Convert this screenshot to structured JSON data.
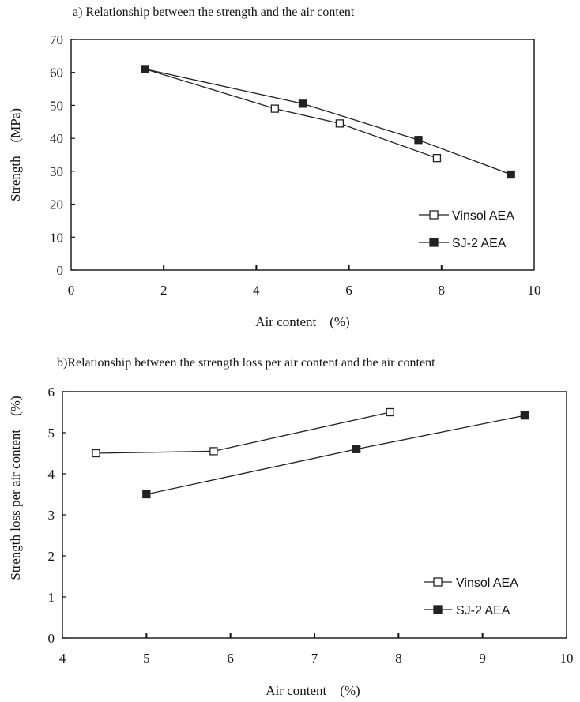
{
  "chart_data": [
    {
      "type": "line",
      "title": "a) Relationship between the strength and the air content",
      "xlabel": "Air content　(%)",
      "ylabel": "Strength　(MPa)",
      "xlim": [
        0,
        10
      ],
      "ylim": [
        0,
        70
      ],
      "xticks": [
        "0",
        "2",
        "4",
        "6",
        "8",
        "10"
      ],
      "yticks": [
        "0",
        "10",
        "20",
        "30",
        "40",
        "50",
        "60",
        "70"
      ],
      "grid": false,
      "legend_position": "lower-right",
      "series": [
        {
          "name": "Vinsol AEA",
          "marker": "open-square",
          "x": [
            1.6,
            4.4,
            5.8,
            7.9
          ],
          "y": [
            61,
            49,
            44.5,
            34
          ]
        },
        {
          "name": "SJ-2 AEA",
          "marker": "filled-square",
          "x": [
            1.6,
            5.0,
            7.5,
            9.5
          ],
          "y": [
            61,
            50.5,
            39.5,
            29
          ]
        }
      ]
    },
    {
      "type": "line",
      "title": "b)Relationship between the strength loss per air content and the air content",
      "xlabel": "Air content　(%)",
      "ylabel": "Strength loss per air content　(%)",
      "xlim": [
        4,
        10
      ],
      "ylim": [
        0,
        6
      ],
      "xticks": [
        "4",
        "5",
        "6",
        "7",
        "8",
        "9",
        "10"
      ],
      "yticks": [
        "0",
        "1",
        "2",
        "3",
        "4",
        "5",
        "6"
      ],
      "grid": false,
      "legend_position": "lower-right",
      "series": [
        {
          "name": "Vinsol AEA",
          "marker": "open-square",
          "x": [
            4.4,
            5.8,
            7.9
          ],
          "y": [
            4.5,
            4.55,
            5.5
          ]
        },
        {
          "name": "SJ-2 AEA",
          "marker": "filled-square",
          "x": [
            5.0,
            7.5,
            9.5
          ],
          "y": [
            3.5,
            4.6,
            5.42
          ]
        }
      ]
    }
  ]
}
